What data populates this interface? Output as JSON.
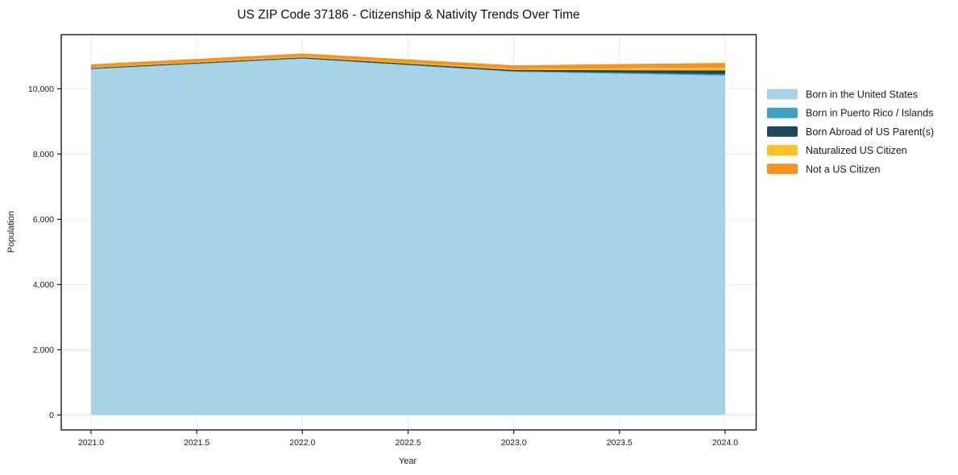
{
  "page": {
    "background": "#ffffff",
    "frame_color": "#1a1a1a",
    "grid_color": "#e9e9e9"
  },
  "chart_data": {
    "type": "area",
    "stacked": true,
    "title": "US ZIP Code 37186 - Citizenship & Nativity Trends Over Time",
    "xlabel": "Year",
    "ylabel": "Population",
    "x": [
      2021,
      2022,
      2023,
      2024
    ],
    "series": [
      {
        "name": "Born in the United States",
        "color": "#a7d3e8",
        "values": [
          10600,
          10920,
          10520,
          10400
        ]
      },
      {
        "name": "Born in Puerto Rico / Islands",
        "color": "#3fa0c1",
        "values": [
          15,
          15,
          20,
          45
        ]
      },
      {
        "name": "Born Abroad of US Parent(s)",
        "color": "#1c4a5c",
        "values": [
          25,
          30,
          40,
          120
        ]
      },
      {
        "name": "Naturalized US Citizen",
        "color": "#fcc02e",
        "values": [
          20,
          25,
          30,
          80
        ]
      },
      {
        "name": "Not a US Citizen",
        "color": "#f7941e",
        "values": [
          90,
          95,
          110,
          150
        ]
      }
    ],
    "totals": [
      10750,
      11085,
      10720,
      10795
    ],
    "xticks": {
      "values": [
        2021.0,
        2021.5,
        2022.0,
        2022.5,
        2023.0,
        2023.5,
        2024.0
      ],
      "labels": [
        "2021.0",
        "2021.5",
        "2022.0",
        "2022.5",
        "2023.0",
        "2023.5",
        "2024.0"
      ]
    },
    "yticks": {
      "values": [
        0,
        2000,
        4000,
        6000,
        8000,
        10000
      ],
      "labels": [
        "0",
        "2,000",
        "4,000",
        "6,000",
        "8,000",
        "10,000"
      ]
    },
    "xlim": [
      2021,
      2024
    ],
    "ylim": [
      0,
      11660
    ],
    "grid": true,
    "legend_position": "center right outside"
  }
}
